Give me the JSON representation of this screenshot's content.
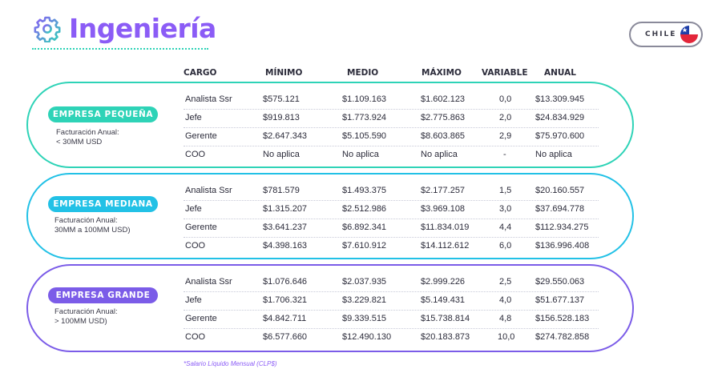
{
  "header": {
    "title": "Ingeniería",
    "country": "CHILE"
  },
  "colors": {
    "accent": "#8b5cf6",
    "small": "#2ed3b7",
    "medium": "#22c1e6",
    "large": "#7b5ce8"
  },
  "columns": [
    "CARGO",
    "MÍNIMO",
    "MEDIO",
    "MÁXIMO",
    "VARIABLE",
    "ANUAL"
  ],
  "sections": [
    {
      "badge": "EMPRESA PEQUEÑA",
      "note_line1": "Facturación Anual:",
      "note_line2": "< 30MM USD",
      "rows": [
        [
          "Analista Ssr",
          "$575.121",
          "$1.109.163",
          "$1.602.123",
          "0,0",
          "$13.309.945"
        ],
        [
          "Jefe",
          "$919.813",
          "$1.773.924",
          "$2.775.863",
          "2,0",
          "$24.834.929"
        ],
        [
          "Gerente",
          "$2.647.343",
          "$5.105.590",
          "$8.603.865",
          "2,9",
          "$75.970.600"
        ],
        [
          "COO",
          "No aplica",
          "No aplica",
          "No aplica",
          "-",
          "No aplica"
        ]
      ]
    },
    {
      "badge": "EMPRESA MEDIANA",
      "note_line1": "Facturación Anual:",
      "note_line2": "30MM a 100MM USD)",
      "rows": [
        [
          "Analista Ssr",
          "$781.579",
          "$1.493.375",
          "$2.177.257",
          "1,5",
          "$20.160.557"
        ],
        [
          "Jefe",
          "$1.315.207",
          "$2.512.986",
          "$3.969.108",
          "3,0",
          "$37.694.778"
        ],
        [
          "Gerente",
          "$3.641.237",
          "$6.892.341",
          "$11.834.019",
          "4,4",
          "$112.934.275"
        ],
        [
          "COO",
          "$4.398.163",
          "$7.610.912",
          "$14.112.612",
          "6,0",
          "$136.996.408"
        ]
      ]
    },
    {
      "badge": "EMPRESA GRANDE",
      "note_line1": "Facturación Anual:",
      "note_line2": "> 100MM USD)",
      "rows": [
        [
          "Analista Ssr",
          "$1.076.646",
          "$2.037.935",
          "$2.999.226",
          "2,5",
          "$29.550.063"
        ],
        [
          "Jefe",
          "$1.706.321",
          "$3.229.821",
          "$5.149.431",
          "4,0",
          "$51.677.137"
        ],
        [
          "Gerente",
          "$4.842.711",
          "$9.339.515",
          "$15.738.814",
          "4,8",
          "$156.528.183"
        ],
        [
          "COO",
          "$6.577.660",
          "$12.490.130",
          "$20.183.873",
          "10,0",
          "$274.782.858"
        ]
      ]
    }
  ],
  "footnote": "*Salario Líquido Mensual (CLP$)"
}
